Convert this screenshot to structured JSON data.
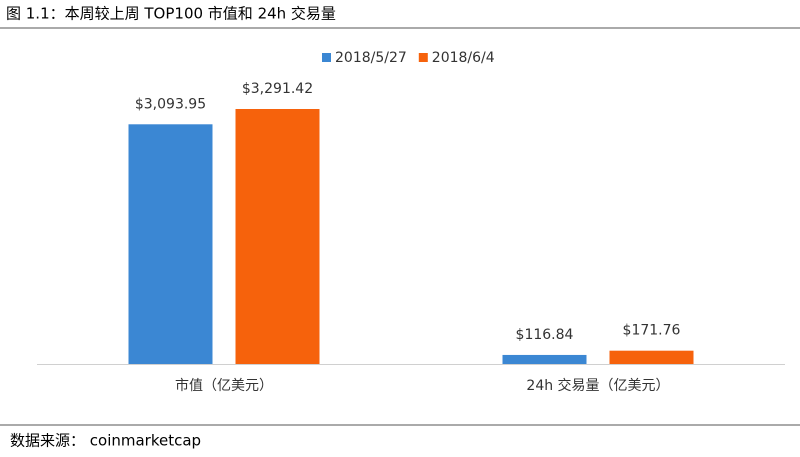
{
  "chart_data": {
    "type": "bar",
    "title": "图 1.1：本周较上周 TOP100 市值和 24h 交易量",
    "categories": [
      "市值（亿美元）",
      "24h 交易量（亿美元）"
    ],
    "series": [
      {
        "name": "2018/5/27",
        "color": "#3b87d3",
        "values": [
          3093.95,
          116.84
        ],
        "value_labels": [
          "$3,093.95",
          "$116.84"
        ]
      },
      {
        "name": "2018/6/4",
        "color": "#f6620c",
        "values": [
          3291.42,
          171.76
        ],
        "value_labels": [
          "$3,291.42",
          "$171.76"
        ]
      }
    ],
    "legend": "top",
    "source": "数据来源： coinmarketcap"
  }
}
